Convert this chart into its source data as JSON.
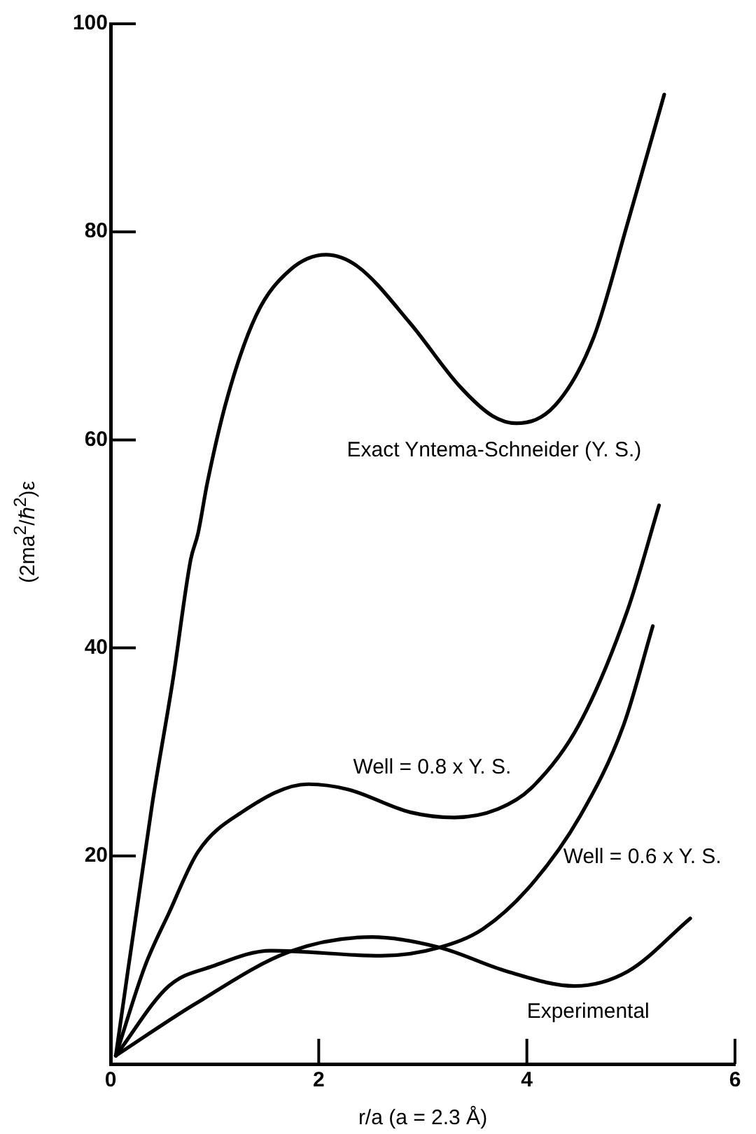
{
  "chart_data": {
    "type": "line",
    "xlabel": "r/a (a = 2.3 Å)",
    "ylabel": "(2ma$^{2}$/ℏ$^{2}$)ε",
    "xlim": [
      0,
      6
    ],
    "xticks": [
      0,
      2,
      4,
      6
    ],
    "ylim": [
      0,
      100
    ],
    "yticks": [
      20,
      40,
      60,
      80,
      100
    ],
    "grid": false,
    "legend": false,
    "series": [
      {
        "name": "Exact Yntema-Schneider (Y. S.)",
        "color": "#000000",
        "x": [
          0.05,
          0.4,
          0.6,
          0.77,
          0.84,
          0.93,
          1.12,
          1.4,
          1.72,
          2.07,
          2.37,
          2.88,
          3.35,
          3.67,
          3.9,
          4.27,
          4.64,
          4.97,
          5.32
        ],
        "values": [
          0.8,
          25,
          37,
          48.5,
          51,
          55.9,
          64,
          72,
          76.3,
          77.8,
          76.7,
          71.2,
          65.2,
          62.3,
          61.6,
          63.3,
          69.8,
          80.9,
          93.2
        ]
      },
      {
        "name": "Well = 0.8 x Y. S.",
        "color": "#000000",
        "x": [
          0.05,
          0.33,
          0.56,
          0.84,
          1.26,
          1.9,
          2.28,
          2.88,
          3.3,
          3.72,
          4.04,
          4.5,
          4.97,
          5.27
        ],
        "values": [
          0.8,
          9.4,
          14.5,
          20.4,
          24.2,
          26.9,
          26.4,
          24.2,
          23.7,
          24.5,
          26.5,
          32.6,
          43.7,
          53.7
        ]
      },
      {
        "name": "Well = 0.6 x Y. S.",
        "color": "#000000",
        "x": [
          0.05,
          0.56,
          0.98,
          1.54,
          2.6,
          3.16,
          3.58,
          4.04,
          4.51,
          4.93,
          5.21
        ],
        "values": [
          0.8,
          7.5,
          9.4,
          10.9,
          10.4,
          11.2,
          13,
          17.2,
          23.8,
          32.6,
          42.1
        ]
      },
      {
        "name": "Experimental",
        "color": "#000000",
        "x": [
          0.05,
          0.8,
          1.72,
          2.51,
          3.16,
          3.81,
          4.46,
          4.97,
          5.57
        ],
        "values": [
          0.8,
          5.7,
          10.8,
          12.2,
          11.2,
          8.9,
          7.5,
          8.9,
          14
        ]
      }
    ]
  }
}
